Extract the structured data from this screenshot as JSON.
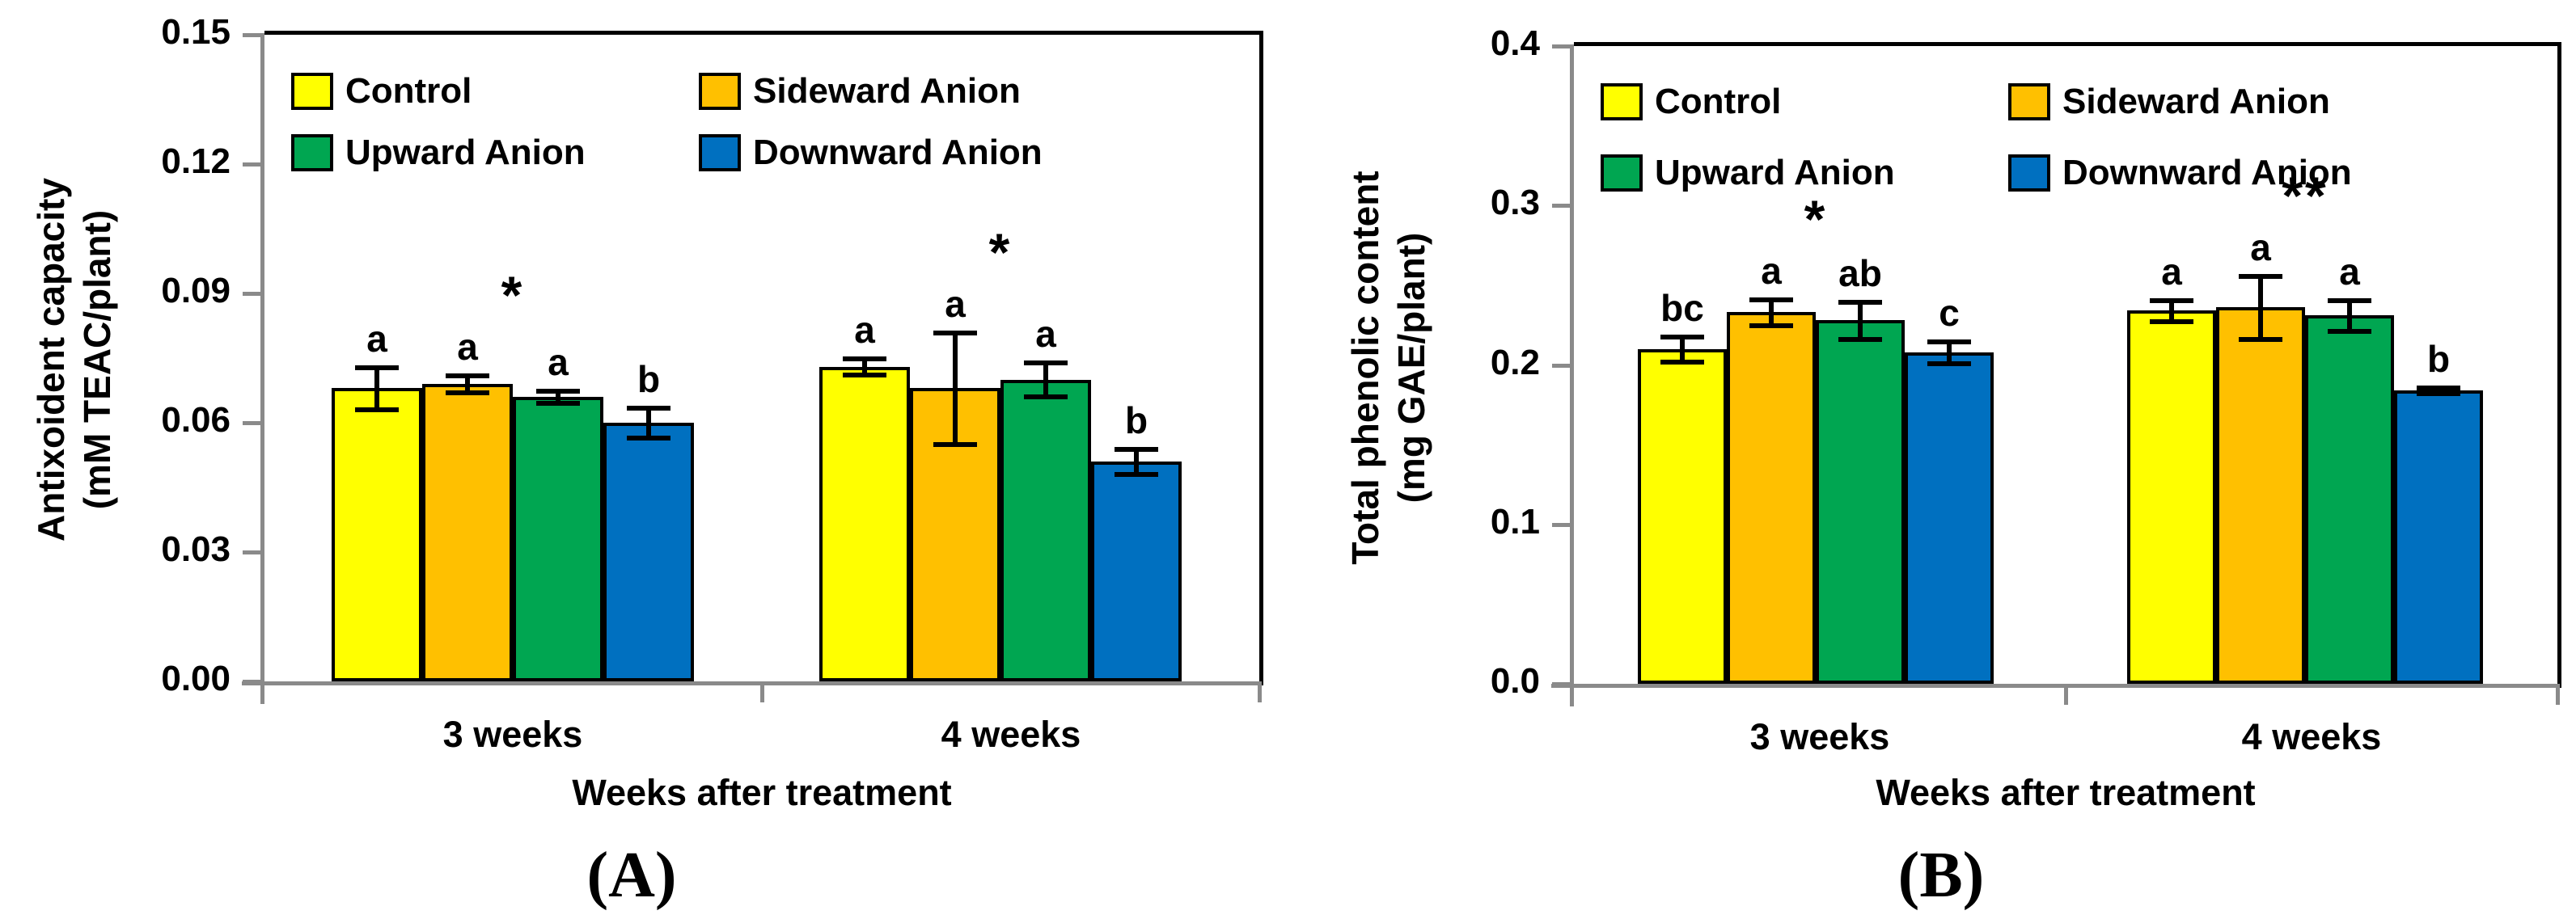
{
  "figure": {
    "background": "#ffffff",
    "axis_line_color_note": "gray axes with black top-right frame"
  },
  "chart_data": [
    {
      "type": "bar",
      "panel_label": "(A)",
      "title": "",
      "ylabel": "Antixoident capacity (mM TEAC/plant)",
      "ylabel_lines": [
        "Antixoident capacity",
        "(mM TEAC/plant)"
      ],
      "xlabel": "Weeks after treatment",
      "categories": [
        "3 weeks",
        "4 weeks"
      ],
      "ylim": [
        0,
        0.15
      ],
      "ytick_labels": [
        "0.00",
        "0.03",
        "0.06",
        "0.09",
        "0.12",
        "0.15"
      ],
      "grid": false,
      "legend_position": "top-left, two columns inside plot",
      "series": [
        {
          "name": "Control",
          "color": "#FFFF00",
          "values": [
            0.068,
            0.073
          ],
          "errors": [
            0.005,
            0.002
          ],
          "letters": [
            "a",
            "a"
          ]
        },
        {
          "name": "Sideward Anion",
          "color": "#FFC000",
          "values": [
            0.069,
            0.068
          ],
          "errors": [
            0.002,
            0.013
          ],
          "letters": [
            "a",
            "a"
          ]
        },
        {
          "name": "Upward Anion",
          "color": "#00A651",
          "values": [
            0.066,
            0.07
          ],
          "errors": [
            0.0015,
            0.004
          ],
          "letters": [
            "a",
            "a"
          ]
        },
        {
          "name": "Downward Anion",
          "color": "#0070C0",
          "values": [
            0.06,
            0.051
          ],
          "errors": [
            0.0035,
            0.003
          ],
          "letters": [
            "b",
            "b"
          ]
        }
      ],
      "significance": [
        {
          "category": "3 weeks",
          "symbol": "*"
        },
        {
          "category": "4 weeks",
          "symbol": "*"
        }
      ]
    },
    {
      "type": "bar",
      "panel_label": "(B)",
      "title": "",
      "ylabel": "Total phenolic content (mg GAE/plant)",
      "ylabel_lines": [
        "Total phenolic content",
        "(mg GAE/plant)"
      ],
      "xlabel": "Weeks after treatment",
      "categories": [
        "3 weeks",
        "4 weeks"
      ],
      "ylim": [
        0,
        0.4
      ],
      "ytick_labels": [
        "0.0",
        "0.1",
        "0.2",
        "0.3",
        "0.4"
      ],
      "grid": false,
      "legend_position": "top-left, two columns inside plot",
      "series": [
        {
          "name": "Control",
          "color": "#FFFF00",
          "values": [
            0.21,
            0.234
          ],
          "errors": [
            0.008,
            0.007
          ],
          "letters": [
            "bc",
            "a"
          ]
        },
        {
          "name": "Sideward Anion",
          "color": "#FFC000",
          "values": [
            0.233,
            0.236
          ],
          "errors": [
            0.0085,
            0.02
          ],
          "letters": [
            "a",
            "a"
          ]
        },
        {
          "name": "Upward Anion",
          "color": "#00A651",
          "values": [
            0.228,
            0.231
          ],
          "errors": [
            0.012,
            0.01
          ],
          "letters": [
            "ab",
            "a"
          ]
        },
        {
          "name": "Downward Anion",
          "color": "#0070C0",
          "values": [
            0.208,
            0.184
          ],
          "errors": [
            0.007,
            0.002
          ],
          "letters": [
            "c",
            "b"
          ]
        }
      ],
      "significance": [
        {
          "category": "3 weeks",
          "symbol": "*"
        },
        {
          "category": "4 weeks",
          "symbol": "**"
        }
      ]
    }
  ]
}
